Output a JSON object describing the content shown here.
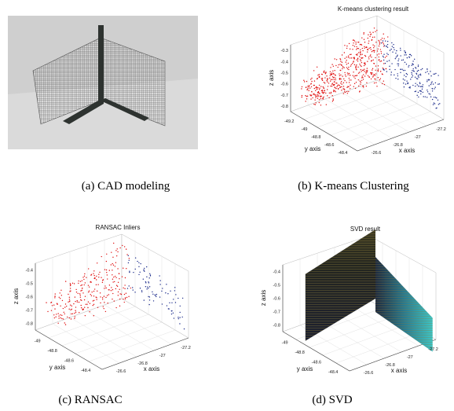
{
  "panel_a": {
    "caption": "(a) CAD modeling"
  },
  "plots": [
    {
      "caption": "(b) K-means Clustering",
      "title": "K-means clustering result",
      "zlabel": "z axis",
      "ylabel": "y axis",
      "xlabel": "x axis",
      "zticks": [
        "-0.3",
        "-0.4",
        "-0.5",
        "-0.6",
        "-0.7",
        "-0.8"
      ],
      "yticks": [
        "-49.2",
        "-49",
        "-48.8",
        "-48.6",
        "-48.4"
      ],
      "xticks": [
        "-26.6",
        "-26.8",
        "-27",
        "-27.2"
      ]
    },
    {
      "caption": "(c) RANSAC",
      "title": "RANSAC Inliers",
      "zlabel": "z axis",
      "ylabel": "y axis",
      "xlabel": "x axis",
      "zticks": [
        "-0.4",
        "-0.5",
        "-0.6",
        "-0.7",
        "-0.8"
      ],
      "yticks": [
        "-49",
        "-48.8",
        "-48.6",
        "-48.4"
      ],
      "xticks": [
        "-26.6",
        "-26.8",
        "-27",
        "-27.2"
      ]
    },
    {
      "caption": "(d) SVD",
      "title": "SVD result",
      "zlabel": "z axis",
      "ylabel": "y axis",
      "xlabel": "x axis",
      "zticks": [
        "-0.4",
        "-0.5",
        "-0.6",
        "-0.7",
        "-0.8"
      ],
      "yticks": [
        "-49",
        "-48.8",
        "-48.6",
        "-48.4"
      ],
      "xticks": [
        "-26.6",
        "-26.8",
        "-27",
        "-27.2"
      ]
    }
  ]
}
